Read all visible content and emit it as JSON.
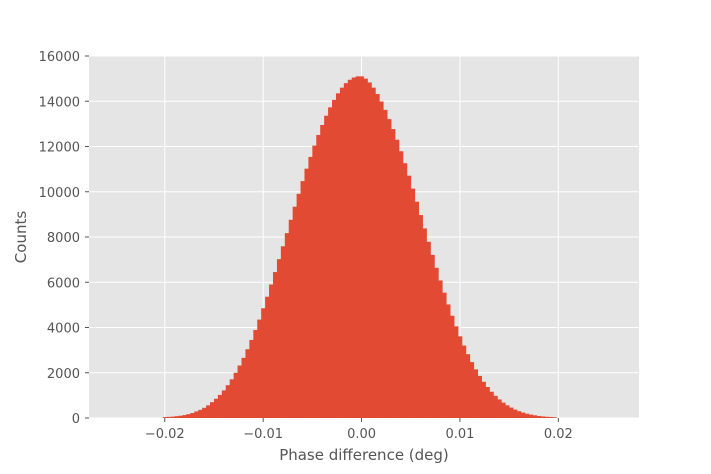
{
  "chart_data": {
    "type": "bar",
    "title": "",
    "xlabel": "Phase difference (deg)",
    "ylabel": "Counts",
    "xlim": [
      -0.0277,
      0.0282
    ],
    "ylim": [
      0,
      16000
    ],
    "grid": true,
    "style": "ggplot",
    "colors": {
      "bars": "#e24a33",
      "plot_background": "#e5e5e5",
      "grid": "#ffffff",
      "tick_text": "#555555"
    },
    "x_ticks": [
      -0.02,
      -0.01,
      0.0,
      0.01,
      0.02
    ],
    "x_tick_labels": [
      "−0.02",
      "−0.01",
      "0.00",
      "0.01",
      "0.02"
    ],
    "y_ticks": [
      0,
      2000,
      4000,
      6000,
      8000,
      10000,
      12000,
      14000,
      16000
    ],
    "y_tick_labels": [
      "0",
      "2000",
      "4000",
      "6000",
      "8000",
      "10000",
      "12000",
      "14000",
      "16000"
    ],
    "bin_start": -0.0202,
    "bin_width": 0.0004,
    "values": [
      40,
      50,
      60,
      80,
      100,
      130,
      170,
      220,
      290,
      360,
      450,
      560,
      700,
      850,
      1020,
      1220,
      1450,
      1710,
      2000,
      2320,
      2660,
      3040,
      3450,
      3890,
      4350,
      4850,
      5360,
      5900,
      6450,
      7020,
      7590,
      8170,
      8760,
      9340,
      9910,
      10470,
      11020,
      11540,
      12040,
      12510,
      12950,
      13360,
      13730,
      14060,
      14350,
      14600,
      14800,
      14950,
      15050,
      15100,
      15100,
      15000,
      14830,
      14600,
      14320,
      13990,
      13620,
      13210,
      12770,
      12300,
      11790,
      11260,
      10710,
      10140,
      9560,
      8970,
      8380,
      7790,
      7210,
      6640,
      6080,
      5540,
      5020,
      4520,
      4050,
      3610,
      3200,
      2820,
      2470,
      2150,
      1860,
      1600,
      1370,
      1160,
      980,
      820,
      680,
      560,
      460,
      370,
      300,
      240,
      190,
      150,
      120,
      90,
      70,
      55,
      45,
      35
    ]
  }
}
